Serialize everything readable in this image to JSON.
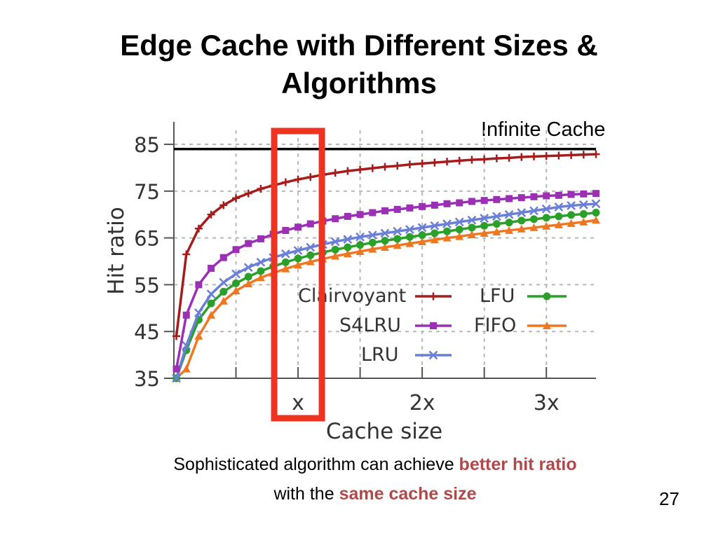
{
  "slide": {
    "title_line1": "Edge Cache with Different Sizes &",
    "title_line2": "Algorithms",
    "caption": {
      "line1_text": "Sophisticated algorithm can achieve ",
      "line1_emph": "better hit ratio",
      "line2_text": "with the ",
      "line2_emph": "same cache size"
    },
    "page_number": "27",
    "highlight_color": "#ee3322",
    "emphasis_color": "#b04a4a"
  },
  "chart_data": {
    "type": "line",
    "xlabel": "Cache size",
    "ylabel": "Hit ratio",
    "x_tick_labels": [
      "x",
      "2x",
      "3x"
    ],
    "x_ticks": [
      1,
      2,
      3
    ],
    "xlim": [
      0,
      3.4
    ],
    "ylim": [
      35,
      88
    ],
    "y_ticks": [
      35,
      45,
      55,
      65,
      75,
      85
    ],
    "grid": true,
    "legend_position": "center-right (inside plot)",
    "reference_line": {
      "label": "Infinite Cache",
      "value": 84
    },
    "highlight_x": 1,
    "x": [
      0.02,
      0.1,
      0.2,
      0.3,
      0.4,
      0.5,
      0.6,
      0.7,
      0.8,
      0.9,
      1.0,
      1.1,
      1.2,
      1.3,
      1.4,
      1.5,
      1.6,
      1.7,
      1.8,
      1.9,
      2.0,
      2.1,
      2.2,
      2.3,
      2.4,
      2.5,
      2.6,
      2.7,
      2.8,
      2.9,
      3.0,
      3.1,
      3.2,
      3.3,
      3.4
    ],
    "series": [
      {
        "name": "Clairvoyant",
        "color": "#a51c1c",
        "marker": "plus",
        "values": [
          44,
          61.5,
          67,
          70,
          72,
          73.5,
          74.5,
          75.5,
          76.2,
          76.9,
          77.5,
          78,
          78.5,
          78.9,
          79.3,
          79.6,
          79.9,
          80.2,
          80.4,
          80.7,
          80.9,
          81.1,
          81.3,
          81.5,
          81.7,
          81.8,
          82,
          82.1,
          82.3,
          82.4,
          82.5,
          82.6,
          82.7,
          82.8,
          82.9
        ]
      },
      {
        "name": "S4LRU",
        "color": "#9b30b4",
        "marker": "square",
        "values": [
          37,
          48.5,
          55,
          58.5,
          60.8,
          62.5,
          63.8,
          64.8,
          65.8,
          66.6,
          67.3,
          68,
          68.6,
          69.1,
          69.6,
          70,
          70.4,
          70.8,
          71.1,
          71.4,
          71.7,
          72,
          72.3,
          72.5,
          72.8,
          73,
          73.2,
          73.4,
          73.6,
          73.8,
          74,
          74.1,
          74.3,
          74.4,
          74.5
        ]
      },
      {
        "name": "LRU",
        "color": "#6a7fd6",
        "marker": "x",
        "values": [
          35,
          42,
          49,
          53,
          55.5,
          57.3,
          58.7,
          59.8,
          60.8,
          61.6,
          62.3,
          63,
          63.6,
          64.2,
          64.7,
          65.2,
          65.6,
          66,
          66.4,
          66.8,
          67.2,
          67.6,
          68,
          68.4,
          68.8,
          69.2,
          69.6,
          70,
          70.4,
          70.8,
          71.2,
          71.6,
          71.9,
          72.1,
          72.3
        ]
      },
      {
        "name": "LFU",
        "color": "#2aa02a",
        "marker": "circle",
        "values": [
          35,
          41,
          47.5,
          51,
          53.5,
          55.3,
          56.7,
          57.9,
          58.9,
          59.8,
          60.6,
          61.3,
          61.9,
          62.5,
          63,
          63.5,
          64,
          64.4,
          64.8,
          65.2,
          65.6,
          66,
          66.4,
          66.8,
          67.2,
          67.6,
          68,
          68.3,
          68.7,
          69,
          69.3,
          69.6,
          69.9,
          70.1,
          70.4
        ]
      },
      {
        "name": "FIFO",
        "color": "#ee7722",
        "marker": "triangle",
        "values": [
          35,
          37,
          44,
          48.5,
          51.5,
          53.7,
          55.2,
          56.5,
          57.5,
          58.4,
          59.2,
          59.9,
          60.5,
          61.1,
          61.6,
          62.1,
          62.6,
          63,
          63.4,
          63.8,
          64.2,
          64.6,
          65,
          65.3,
          65.7,
          66,
          66.3,
          66.6,
          66.9,
          67.2,
          67.5,
          67.8,
          68.1,
          68.4,
          68.8
        ]
      }
    ]
  }
}
